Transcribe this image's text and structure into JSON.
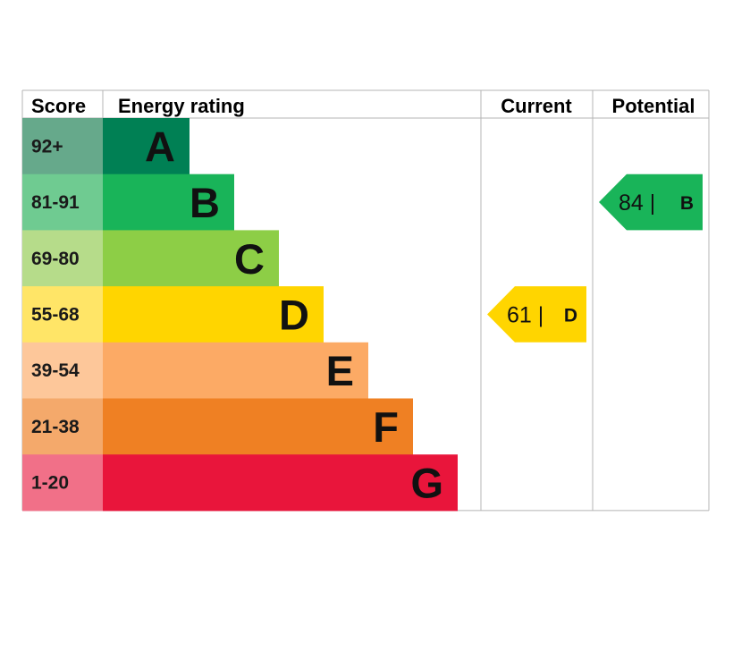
{
  "chart_data": {
    "type": "bar",
    "headers": {
      "score": "Score",
      "rating": "Energy rating",
      "current": "Current",
      "potential": "Potential"
    },
    "bands": [
      {
        "score": "92+",
        "letter": "A",
        "color": "#008054",
        "score_bg": "#66a98b"
      },
      {
        "score": "81-91",
        "letter": "B",
        "color": "#19b459",
        "score_bg": "#6fcb91"
      },
      {
        "score": "69-80",
        "letter": "C",
        "color": "#8dce46",
        "score_bg": "#b6dc8a"
      },
      {
        "score": "55-68",
        "letter": "D",
        "color": "#ffd500",
        "score_bg": "#ffe567"
      },
      {
        "score": "39-54",
        "letter": "E",
        "color": "#fcaa65",
        "score_bg": "#fdc79a"
      },
      {
        "score": "21-38",
        "letter": "F",
        "color": "#ef8023",
        "score_bg": "#f4a96b"
      },
      {
        "score": "1-20",
        "letter": "G",
        "color": "#e9153b",
        "score_bg": "#f17088"
      }
    ],
    "current": {
      "value": 61,
      "label": "61 |",
      "letter": "D",
      "color": "#ffd500"
    },
    "potential": {
      "value": 84,
      "label": "84 |",
      "letter": "B",
      "color": "#19b459"
    }
  }
}
